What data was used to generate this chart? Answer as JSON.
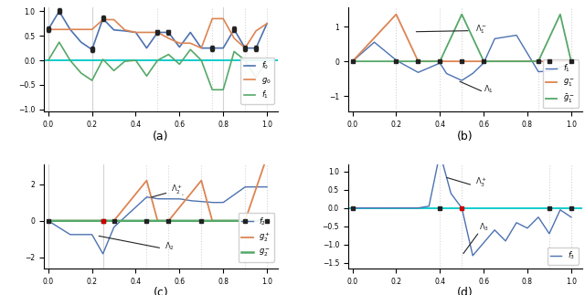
{
  "colors": {
    "blue": "#4C72B0",
    "orange": "#DD8452",
    "green": "#55A868",
    "cyan": "#00C8C8",
    "black": "#222222",
    "gray": "#888888",
    "red": "#CC0000"
  },
  "labels": {
    "a": "(a)",
    "b": "(b)",
    "c": "(c)",
    "d": "(d)"
  }
}
